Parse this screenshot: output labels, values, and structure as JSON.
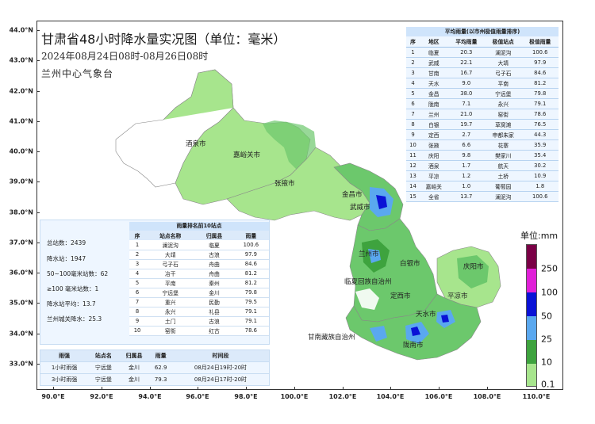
{
  "title": "甘肃省48小时降水量实况图（单位：毫米）",
  "subtitle": "2024年08月24日08时-08月26日08时",
  "org": "兰州中心气象台",
  "lat_labels": [
    "44.0°N",
    "43.0°N",
    "42.0°N",
    "41.0°N",
    "40.0°N",
    "39.0°N",
    "38.0°N",
    "37.0°N",
    "36.0°N",
    "35.0°N",
    "34.0°N",
    "33.0°N"
  ],
  "lon_labels": [
    "90.0°E",
    "92.0°E",
    "94.0°E",
    "96.0°E",
    "98.0°E",
    "100.0°E",
    "102.0°E",
    "104.0°E",
    "106.0°E",
    "108.0°E",
    "110.0°E"
  ],
  "cities": [
    "酒泉市",
    "嘉峪关市",
    "张掖市",
    "金昌市",
    "武威市",
    "兰州市",
    "白银市",
    "庆阳市",
    "临夏回族自治州",
    "定西市",
    "平凉市",
    "天水市",
    "甘南藏族自治州",
    "陇南市"
  ],
  "avg_table": {
    "caption": "平均雨量(以市州极值雨量排序)",
    "headers": [
      "序",
      "地区",
      "平均雨量",
      "极值站点",
      "极值雨量"
    ],
    "rows": [
      [
        "1",
        "临夏",
        "20.3",
        "澜泥沟",
        "100.6"
      ],
      [
        "2",
        "武威",
        "22.1",
        "大靖",
        "97.9"
      ],
      [
        "3",
        "甘南",
        "16.7",
        "弓子石",
        "84.6"
      ],
      [
        "4",
        "天水",
        "9.0",
        "平南",
        "81.2"
      ],
      [
        "5",
        "金昌",
        "38.0",
        "宁远堡",
        "79.8"
      ],
      [
        "6",
        "陇南",
        "7.1",
        "永兴",
        "79.1"
      ],
      [
        "7",
        "兰州",
        "21.0",
        "窑街",
        "78.6"
      ],
      [
        "8",
        "白银",
        "19.7",
        "草窝滩",
        "76.5"
      ],
      [
        "9",
        "定西",
        "2.7",
        "申都朱家",
        "44.3"
      ],
      [
        "10",
        "张掖",
        "6.6",
        "花寨",
        "35.9"
      ],
      [
        "11",
        "庆阳",
        "9.8",
        "樊家川",
        "35.4"
      ],
      [
        "12",
        "酒泉",
        "1.7",
        "航天",
        "30.2"
      ],
      [
        "13",
        "平凉",
        "1.2",
        "土桥",
        "10.9"
      ],
      [
        "14",
        "嘉峪关",
        "1.0",
        "葡萄园",
        "1.8"
      ],
      [
        "15",
        "全省",
        "13.7",
        "澜泥沟",
        "100.6"
      ]
    ]
  },
  "stats": [
    "总站数：2439",
    "降水站：1947",
    "50~100毫米站数：62",
    "≥100 毫米站数：1",
    "降水站平均：13.7",
    "兰州城关降水：25.3"
  ],
  "top_table": {
    "caption": "雨量排名前10站点",
    "headers": [
      "序",
      "站点名称",
      "归属县",
      "雨量"
    ],
    "rows": [
      [
        "1",
        "澜泥沟",
        "临夏",
        "100.6"
      ],
      [
        "2",
        "大靖",
        "古浪",
        "97.9"
      ],
      [
        "3",
        "弓子石",
        "舟曲",
        "84.6"
      ],
      [
        "4",
        "冶干",
        "舟曲",
        "81.2"
      ],
      [
        "5",
        "平南",
        "秦州",
        "81.2"
      ],
      [
        "6",
        "宁远堡",
        "金川",
        "79.8"
      ],
      [
        "7",
        "重兴",
        "民勤",
        "79.5"
      ],
      [
        "8",
        "永兴",
        "礼县",
        "79.1"
      ],
      [
        "9",
        "土门",
        "古浪",
        "79.1"
      ],
      [
        "10",
        "窑街",
        "红古",
        "78.6"
      ]
    ]
  },
  "hour_table": {
    "headers": [
      "雨强",
      "站点名",
      "归属县",
      "雨量",
      "时间段"
    ],
    "rows": [
      [
        "1小时雨强",
        "宁远堡",
        "金川",
        "62.9",
        "08月24日19时-20时"
      ],
      [
        "3小时雨强",
        "宁远堡",
        "金川",
        "79.3",
        "08月24日17时-20时"
      ]
    ]
  },
  "legend": {
    "title": "单位:mm",
    "labels": [
      "250",
      "100",
      "50",
      "25",
      "10",
      "0.1"
    ],
    "colors": [
      "#7a0046",
      "#e020d8",
      "#0a12d6",
      "#5aa8ef",
      "#3ea33e",
      "#a7e58d"
    ]
  }
}
